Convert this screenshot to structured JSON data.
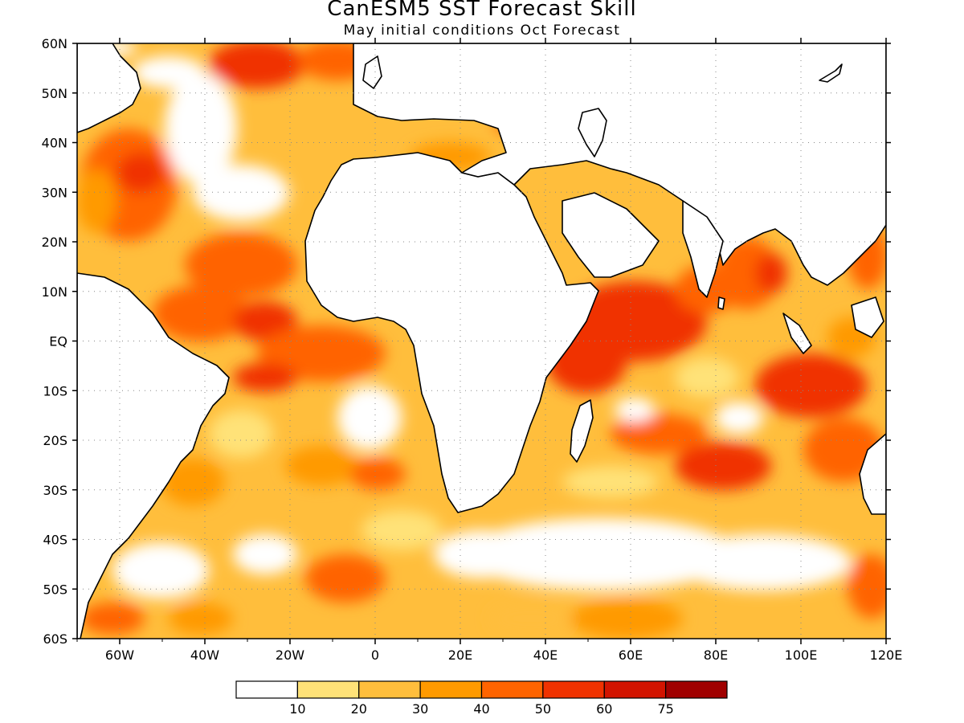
{
  "title": "CanESM5 SST Forecast Skill",
  "subtitle": "May initial conditions  Oct Forecast",
  "map": {
    "lon_range": [
      -70,
      120
    ],
    "lat_range": [
      -60,
      60
    ],
    "lat_labels": [
      "60N",
      "50N",
      "40N",
      "30N",
      "20N",
      "10N",
      "EQ",
      "10S",
      "20S",
      "30S",
      "40S",
      "50S",
      "60S"
    ],
    "lon_labels": [
      "60W",
      "40W",
      "20W",
      "0",
      "20E",
      "40E",
      "60E",
      "80E",
      "100E",
      "120E"
    ],
    "grid": true
  },
  "legend": {
    "colors": [
      "#ffffff",
      "#ffe278",
      "#ffbe3c",
      "#ff9a00",
      "#ff6400",
      "#f03200",
      "#d21400",
      "#a00000"
    ],
    "labels": [
      "10",
      "20",
      "30",
      "40",
      "50",
      "60",
      "75"
    ]
  }
}
